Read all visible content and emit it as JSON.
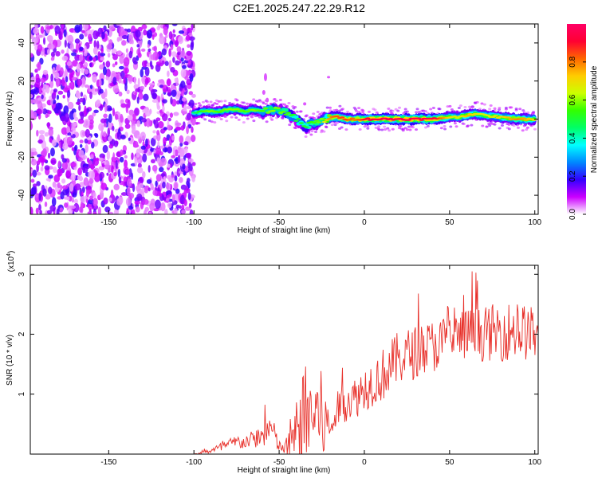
{
  "title": "C2E1.2025.247.22.29.R12",
  "chart_data": [
    {
      "type": "heatmap",
      "title": "C2E1.2025.247.22.29.R12",
      "xlabel": "Height of straight line (km)",
      "ylabel": "Frequency (Hz)",
      "xlim": [
        -196,
        102
      ],
      "ylim": [
        -50,
        50
      ],
      "xticks": [
        -150,
        -100,
        -50,
        0,
        50,
        100
      ],
      "yticks": [
        -40,
        -20,
        0,
        20,
        40
      ],
      "colorbar": {
        "label": "Normalized spectral amplitude",
        "range": [
          0,
          1
        ],
        "ticks": [
          0.0,
          0.2,
          0.4,
          0.6,
          0.8
        ],
        "colors": [
          "#ffffff",
          "#cc00ff",
          "#3300ff",
          "#0088ff",
          "#00ffff",
          "#00ff66",
          "#33ff00",
          "#ccff00",
          "#ffcc00",
          "#ff6600",
          "#ff0033",
          "#ff0066"
        ]
      },
      "noise_region_x": [
        -196,
        -100
      ],
      "ridge": {
        "x": [
          -100,
          -95,
          -90,
          -85,
          -80,
          -75,
          -70,
          -65,
          -60,
          -55,
          -50,
          -45,
          -40,
          -35,
          -30,
          -25,
          -20,
          -15,
          -10,
          -5,
          0,
          10,
          20,
          30,
          40,
          50,
          55,
          60,
          65,
          70,
          80,
          90,
          100
        ],
        "freq": [
          3,
          4,
          4,
          4,
          5,
          5,
          4,
          5,
          4,
          5,
          5,
          3,
          0,
          -4,
          -2,
          -1,
          1,
          1,
          0,
          0,
          0,
          0,
          0,
          0,
          0,
          1,
          1,
          2,
          3,
          2,
          1,
          0,
          0
        ],
        "peak_amplitude": [
          0.45,
          0.55,
          0.6,
          0.55,
          0.6,
          0.6,
          0.55,
          0.6,
          0.55,
          0.6,
          0.6,
          0.55,
          0.5,
          0.5,
          0.55,
          0.6,
          0.8,
          0.85,
          0.85,
          0.8,
          0.9,
          0.95,
          0.95,
          0.95,
          0.95,
          0.7,
          0.65,
          0.75,
          0.7,
          0.65,
          0.7,
          0.8,
          0.7
        ]
      }
    },
    {
      "type": "line",
      "xlabel": "Height of straight line (km)",
      "ylabel": "SNR (10 * v/v)",
      "y_multiplier": "(x10",
      "y_multiplier_exp": "4",
      "xlim": [
        -196,
        102
      ],
      "ylim": [
        0,
        3.15
      ],
      "xticks": [
        -150,
        -100,
        -50,
        0,
        50,
        100
      ],
      "yticks": [
        1,
        2,
        3
      ],
      "line_color": "#e8312b",
      "series": [
        {
          "name": "SNR",
          "x": [
            -196,
            -100,
            -95,
            -90,
            -85,
            -80,
            -75,
            -70,
            -65,
            -60,
            -55,
            -50,
            -45,
            -40,
            -35,
            -30,
            -25,
            -20,
            -15,
            -10,
            -5,
            0,
            5,
            10,
            15,
            20,
            30,
            40,
            50,
            60,
            70,
            80,
            90,
            100
          ],
          "y": [
            0.0,
            0.0,
            0.02,
            0.06,
            0.1,
            0.15,
            0.2,
            0.2,
            0.25,
            0.3,
            0.45,
            0.12,
            0.1,
            0.3,
            0.6,
            0.7,
            0.6,
            0.4,
            0.8,
            0.9,
            0.95,
            1.1,
            1.2,
            1.3,
            1.45,
            1.6,
            1.7,
            1.8,
            1.9,
            2.0,
            2.0,
            2.05,
            2.05,
            2.0
          ],
          "spread": [
            0.0,
            0.0,
            0.02,
            0.05,
            0.08,
            0.1,
            0.12,
            0.12,
            0.15,
            0.2,
            0.3,
            0.1,
            0.2,
            0.6,
            0.9,
            0.8,
            0.8,
            0.25,
            0.3,
            0.35,
            0.35,
            0.4,
            0.4,
            0.45,
            0.45,
            0.45,
            0.45,
            0.45,
            0.45,
            0.45,
            0.45,
            0.5,
            0.5,
            0.45
          ]
        }
      ]
    }
  ]
}
